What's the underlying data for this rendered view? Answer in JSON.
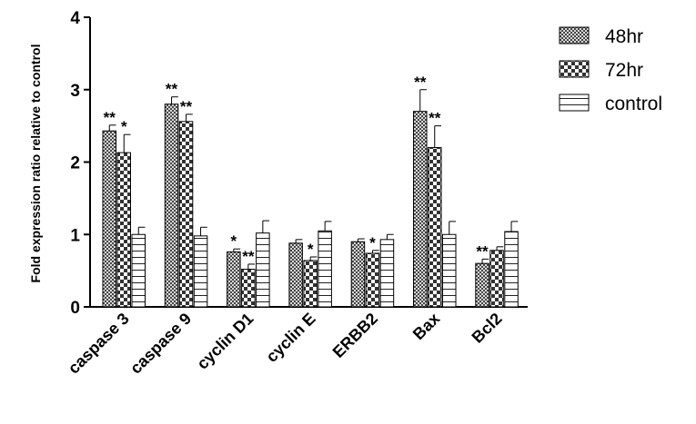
{
  "chart_data": {
    "type": "bar",
    "title": "",
    "xlabel": "",
    "ylabel": "Fold expression ratio relative to control",
    "ylim": [
      0,
      4
    ],
    "yticks": [
      "0",
      "1",
      "2",
      "3",
      "4"
    ],
    "grid": false,
    "legend_position": "top-right",
    "categories": [
      "caspase 3",
      "caspase 9",
      "cyclin D1",
      "cyclin E",
      "ERBB2",
      "Bax",
      "Bcl2"
    ],
    "series": [
      {
        "name": "48hr",
        "pattern": "fine-crosshatch",
        "values": [
          2.43,
          2.8,
          0.76,
          0.88,
          0.9,
          2.7,
          0.6
        ],
        "errors": [
          0.08,
          0.1,
          0.04,
          0.05,
          0.04,
          0.3,
          0.06
        ],
        "significance": [
          "**",
          "**",
          "*",
          "",
          "",
          "**",
          "**"
        ]
      },
      {
        "name": "72hr",
        "pattern": "checkerboard",
        "values": [
          2.13,
          2.56,
          0.52,
          0.64,
          0.74,
          2.2,
          0.78
        ],
        "errors": [
          0.25,
          0.1,
          0.07,
          0.05,
          0.04,
          0.3,
          0.05
        ],
        "significance": [
          "*",
          "**",
          "**",
          "*",
          "*",
          "**",
          ""
        ]
      },
      {
        "name": "control",
        "pattern": "horizontal-lines",
        "values": [
          1.0,
          0.98,
          1.02,
          1.05,
          0.93,
          1.0,
          1.04
        ],
        "errors": [
          0.1,
          0.12,
          0.17,
          0.13,
          0.07,
          0.18,
          0.14
        ],
        "significance": [
          "",
          "",
          "",
          "",
          "",
          "",
          ""
        ]
      }
    ],
    "colors": {
      "bar_fill": "#ffffff",
      "ink": "#000000"
    }
  }
}
